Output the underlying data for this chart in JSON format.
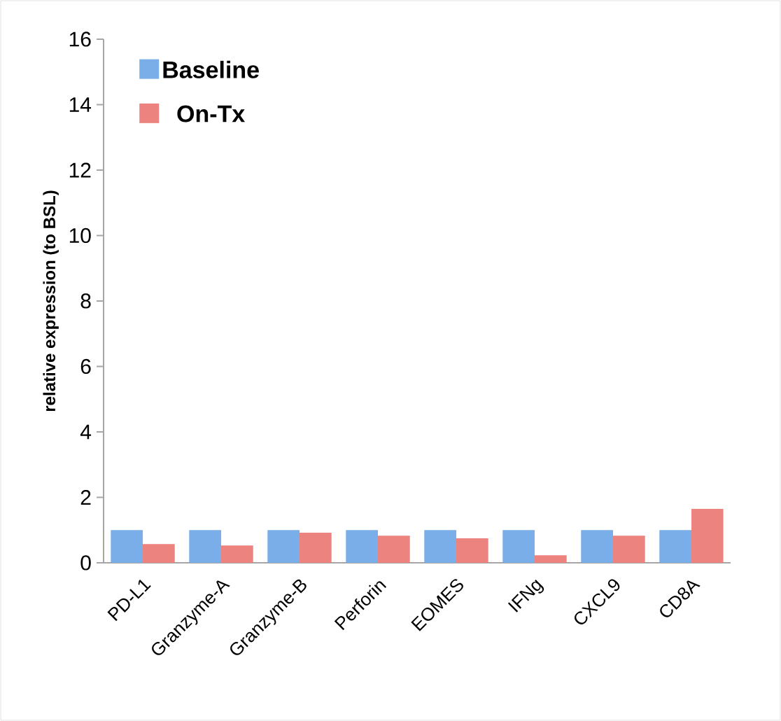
{
  "chart_data": {
    "type": "bar",
    "ylabel": "relative expression (to BSL)",
    "categories": [
      "PD-L1",
      "Granzyme-A",
      "Granzyme-B",
      "Perforin",
      "EOMES",
      "IFNg",
      "CXCL9",
      "CD8A"
    ],
    "series": [
      {
        "name": "Baseline",
        "color": "#7aaee8",
        "values": [
          1.0,
          1.0,
          1.0,
          1.0,
          1.0,
          1.0,
          1.0,
          1.0
        ]
      },
      {
        "name": "On-Tx",
        "color": "#ec837e",
        "values": [
          0.57,
          0.53,
          0.92,
          0.83,
          0.75,
          0.23,
          0.83,
          1.65
        ]
      }
    ],
    "ylim": [
      0,
      16
    ],
    "yticks": [
      0,
      2,
      4,
      6,
      8,
      10,
      12,
      14,
      16
    ],
    "grid": false,
    "legend": "top left"
  }
}
